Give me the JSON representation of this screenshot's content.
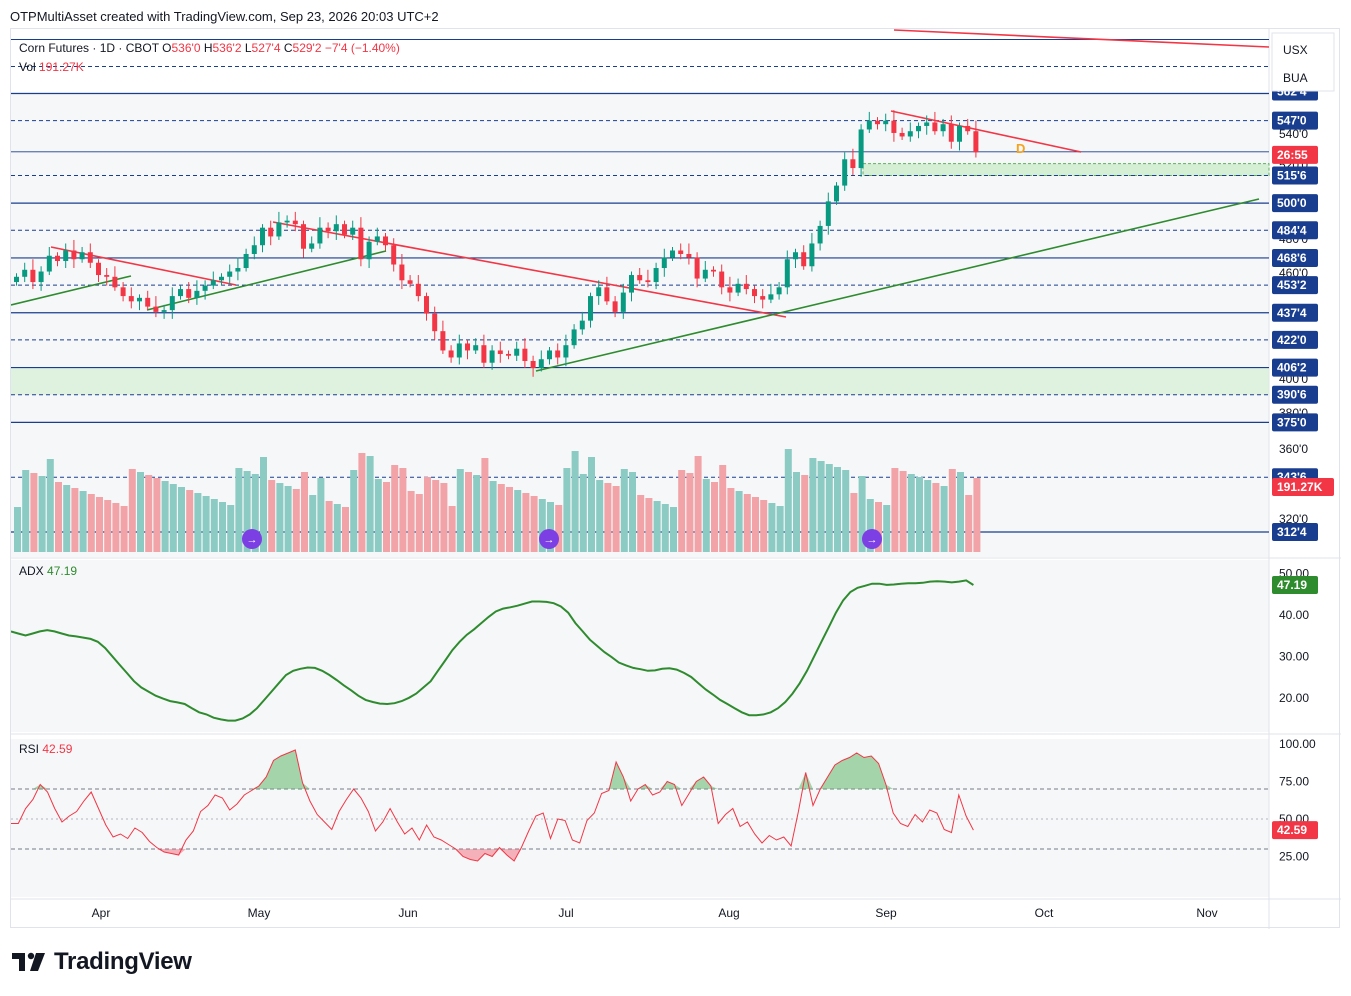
{
  "header": {
    "text": "OTPMultiAsset created with TradingView.com, Sep 23, 2026 20:03 UTC+2"
  },
  "legend": {
    "symbol": "Corn Futures · 1D · CBOT",
    "o_label": "O",
    "o_value": "536'0",
    "h_label": "H",
    "h_value": "536'2",
    "l_label": "L",
    "l_value": "527'4",
    "c_label": "C",
    "c_value": "529'2",
    "change": "−7'4 (−1.40%)",
    "vol_label": "Vol",
    "vol_value": "191.27K"
  },
  "currency_menu": [
    "USX",
    "BUA"
  ],
  "logo_text": "TradingView",
  "colors": {
    "up": "#089981",
    "down": "#f23645",
    "up_vol": "#8ccbc3",
    "down_vol": "#f2a3a8",
    "adx": "#2e8b2e",
    "rsi": "#f23645",
    "level": "#1a3e8f",
    "trend_green": "#2e8b2e",
    "trend_red": "#f23645",
    "zone": "#d4efd4"
  },
  "chart_data": [
    {
      "type": "candlestick",
      "x_axis": {
        "ticks": [
          "Apr",
          "May",
          "Jun",
          "Jul",
          "Aug",
          "Sep",
          "Oct",
          "Nov"
        ]
      },
      "y_axis": {
        "ticks": [
          "540'0",
          "520'0",
          "480'0",
          "460'0",
          "400'0",
          "380'0",
          "360'0",
          "320'0"
        ]
      },
      "last_price": "529'2",
      "countdown": "26:55",
      "volume_label": "191.27K",
      "level_labels": [
        "547'0",
        "515'6",
        "500'0",
        "484'4",
        "468'6",
        "453'2",
        "437'4",
        "422'0",
        "406'2",
        "390'6",
        "375'0",
        "343'6",
        "312'4"
      ],
      "top_label": "562'4",
      "dividend_marker": "D",
      "candles_close": [
        458,
        462,
        455,
        461,
        470,
        467,
        473,
        468,
        472,
        466,
        459,
        458,
        452,
        447,
        444,
        446,
        441,
        438,
        439,
        447,
        451,
        446,
        450,
        453,
        456,
        458,
        461,
        463,
        471,
        476,
        486,
        481,
        489,
        490,
        488,
        474,
        477,
        486,
        484,
        488,
        482,
        486,
        468,
        478,
        481,
        476,
        465,
        456,
        454,
        447,
        437,
        427,
        416,
        412,
        420,
        416,
        419,
        409,
        416,
        414,
        413,
        417,
        410,
        406,
        411,
        416,
        412,
        419,
        428,
        433,
        447,
        452,
        444,
        438,
        449,
        459,
        456,
        455,
        463,
        469,
        473,
        471,
        469,
        457,
        462,
        461,
        452,
        449,
        454,
        451,
        447,
        445,
        448,
        452,
        468,
        472,
        464,
        477,
        487,
        501,
        510,
        525,
        520,
        542,
        547,
        545,
        547,
        540,
        538,
        541,
        544,
        546,
        541,
        545,
        535,
        544,
        541,
        529
      ]
    },
    {
      "type": "line",
      "title": "ADX",
      "value": "47.19",
      "y_ticks": [
        "50.00",
        "40.00",
        "30.00",
        "20.00"
      ],
      "values": [
        36,
        35.5,
        35,
        35.5,
        36,
        36.3,
        36,
        35.5,
        35,
        34.8,
        34.5,
        34.2,
        33.5,
        32,
        30,
        28,
        26,
        24,
        22.5,
        21.5,
        20.5,
        19.8,
        19.2,
        18.9,
        18.5,
        17.5,
        16.5,
        16,
        15.2,
        14.8,
        14.5,
        14.5,
        15,
        16,
        17.5,
        19.5,
        21.5,
        23.5,
        25.5,
        26.5,
        27,
        27.3,
        27.2,
        26.5,
        25.5,
        24.3,
        23,
        21.8,
        20.5,
        19.5,
        19,
        18.6,
        18.5,
        18.7,
        19.2,
        20,
        21,
        22.5,
        24,
        26.5,
        29,
        31.5,
        33.5,
        35.2,
        36.5,
        38,
        39.5,
        40.8,
        41.5,
        41.8,
        42.2,
        42.7,
        43.2,
        43.2,
        43.1,
        42.8,
        42,
        40.5,
        38,
        36,
        34,
        32.5,
        31,
        29.8,
        28.5,
        27.8,
        27.2,
        26.9,
        26.5,
        26.6,
        27,
        27.1,
        26.8,
        26,
        25,
        23.5,
        22,
        20.8,
        19.5,
        18.5,
        17.5,
        16.5,
        15.8,
        15.8,
        16,
        16.5,
        17.5,
        19,
        21,
        23.5,
        26.5,
        30,
        33.5,
        37,
        40.5,
        43.5,
        45.5,
        46.5,
        47,
        47.5,
        47.5,
        47.2,
        47.3,
        47.5,
        47.6,
        47.6,
        47.7,
        48,
        48.1,
        48,
        47.8,
        48,
        48.3,
        47.19
      ]
    },
    {
      "type": "line",
      "title": "RSI",
      "value": "42.59",
      "y_ticks": [
        "100.00",
        "75.00",
        "50.00",
        "25.00"
      ],
      "values": [
        47,
        47,
        57,
        63,
        73,
        68,
        57,
        48,
        52,
        55,
        62,
        68,
        57,
        46,
        38,
        40,
        37,
        44,
        41,
        35,
        31,
        28,
        27,
        26,
        36,
        42,
        55,
        59,
        66,
        64,
        56,
        60,
        66,
        69,
        72,
        78,
        89,
        92,
        94,
        96,
        74,
        62,
        53,
        48,
        43,
        55,
        63,
        70,
        64,
        55,
        42,
        48,
        57,
        48,
        40,
        44,
        36,
        46,
        38,
        36,
        33,
        30,
        25,
        23,
        22,
        27,
        25,
        31,
        26,
        22,
        31,
        42,
        52,
        54,
        37,
        50,
        49,
        36,
        34,
        49,
        54,
        67,
        69,
        88,
        78,
        62,
        70,
        73,
        66,
        68,
        75,
        73,
        59,
        67,
        75,
        78,
        72,
        47,
        53,
        57,
        45,
        48,
        40,
        34,
        39,
        36,
        38,
        32,
        55,
        81,
        59,
        70,
        78,
        86,
        89,
        91,
        94,
        91,
        92,
        87,
        73,
        54,
        47,
        45,
        53,
        48,
        56,
        54,
        43,
        41,
        66,
        52,
        42.59
      ]
    }
  ]
}
